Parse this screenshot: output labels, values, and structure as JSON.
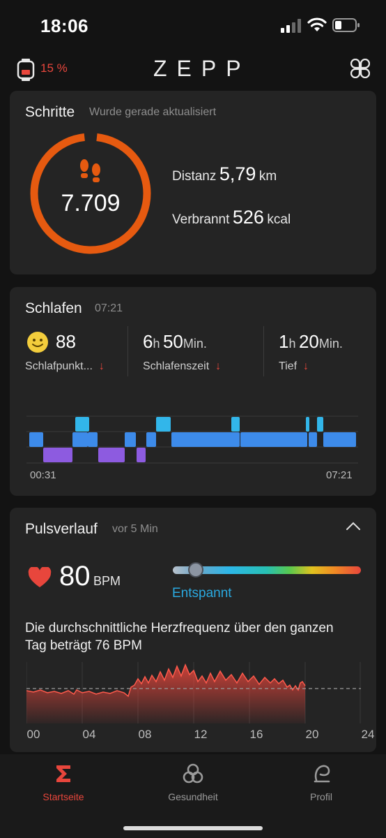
{
  "status_bar": {
    "time": "18:06"
  },
  "header": {
    "watch_battery": "15 %",
    "brand": "ZEPP"
  },
  "steps": {
    "title": "Schritte",
    "subtitle": "Wurde gerade aktualisiert",
    "value": "7.709",
    "distance_label": "Distanz",
    "distance_value": "5,79",
    "distance_unit": "km",
    "burned_label": "Verbrannt",
    "burned_value": "526",
    "burned_unit": "kcal"
  },
  "sleep": {
    "title": "Schlafen",
    "time": "07:21",
    "score": "88",
    "score_label": "Schlafpunkt...",
    "duration_h": "6",
    "duration_h_unit": "h",
    "duration_m": "50",
    "duration_m_unit": "Min.",
    "duration_label": "Schlafenszeit",
    "deep_h": "1",
    "deep_h_unit": "h",
    "deep_m": "20",
    "deep_m_unit": "Min.",
    "deep_label": "Tief",
    "chart_start": "00:31",
    "chart_end": "07:21",
    "colors": {
      "awake": "#32b6ea",
      "light": "#3d8bea",
      "deep": "#8d5be0"
    }
  },
  "pulse": {
    "title": "Pulsverlauf",
    "subtitle": "vor 5 Min",
    "value": "80",
    "unit": "BPM",
    "zone": "Entspannt",
    "slider_position_pct": 12,
    "description": "Die durchschnittliche Herzfrequenz über den ganzen Tag beträgt 76 BPM",
    "x_labels": [
      "00",
      "04",
      "08",
      "12",
      "16",
      "20",
      "24"
    ],
    "average_bpm": 76,
    "accent": "#e8463c"
  },
  "nav": {
    "items": [
      {
        "label": "Startseite",
        "active": true
      },
      {
        "label": "Gesundheit",
        "active": false
      },
      {
        "label": "Profil",
        "active": false
      }
    ]
  }
}
